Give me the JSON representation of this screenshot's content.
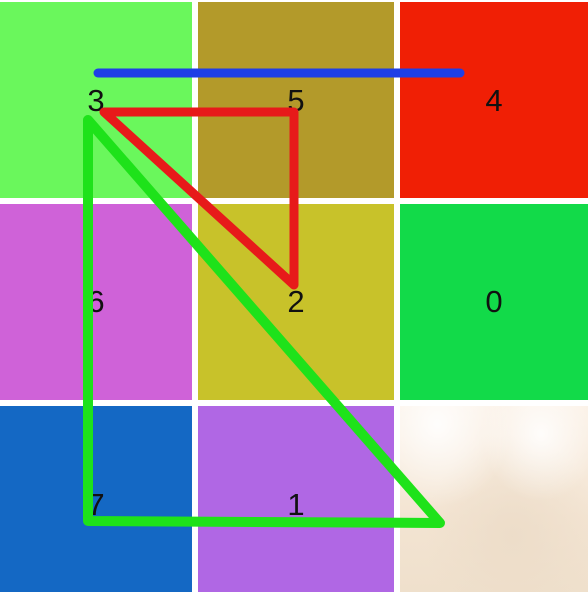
{
  "tiles": [
    {
      "label": "3",
      "color": "#6af75c"
    },
    {
      "label": "5",
      "color": "#b39a2a"
    },
    {
      "label": "4",
      "color": "#f01f05"
    },
    {
      "label": "6",
      "color": "#cf62d8"
    },
    {
      "label": "2",
      "color": "#c8c22a"
    },
    {
      "label": "0",
      "color": "#12da49"
    },
    {
      "label": "7",
      "color": "#1468c4"
    },
    {
      "label": "1",
      "color": "#b067e4"
    },
    {
      "label": "",
      "color": "#f5e8d8",
      "image": "blurred-photo"
    }
  ],
  "strokes": [
    {
      "name": "blue-line",
      "color": "#1f3fe6"
    },
    {
      "name": "red-triangle",
      "color": "#e71a1a"
    },
    {
      "name": "green-triangle",
      "color": "#1ee21a"
    }
  ]
}
